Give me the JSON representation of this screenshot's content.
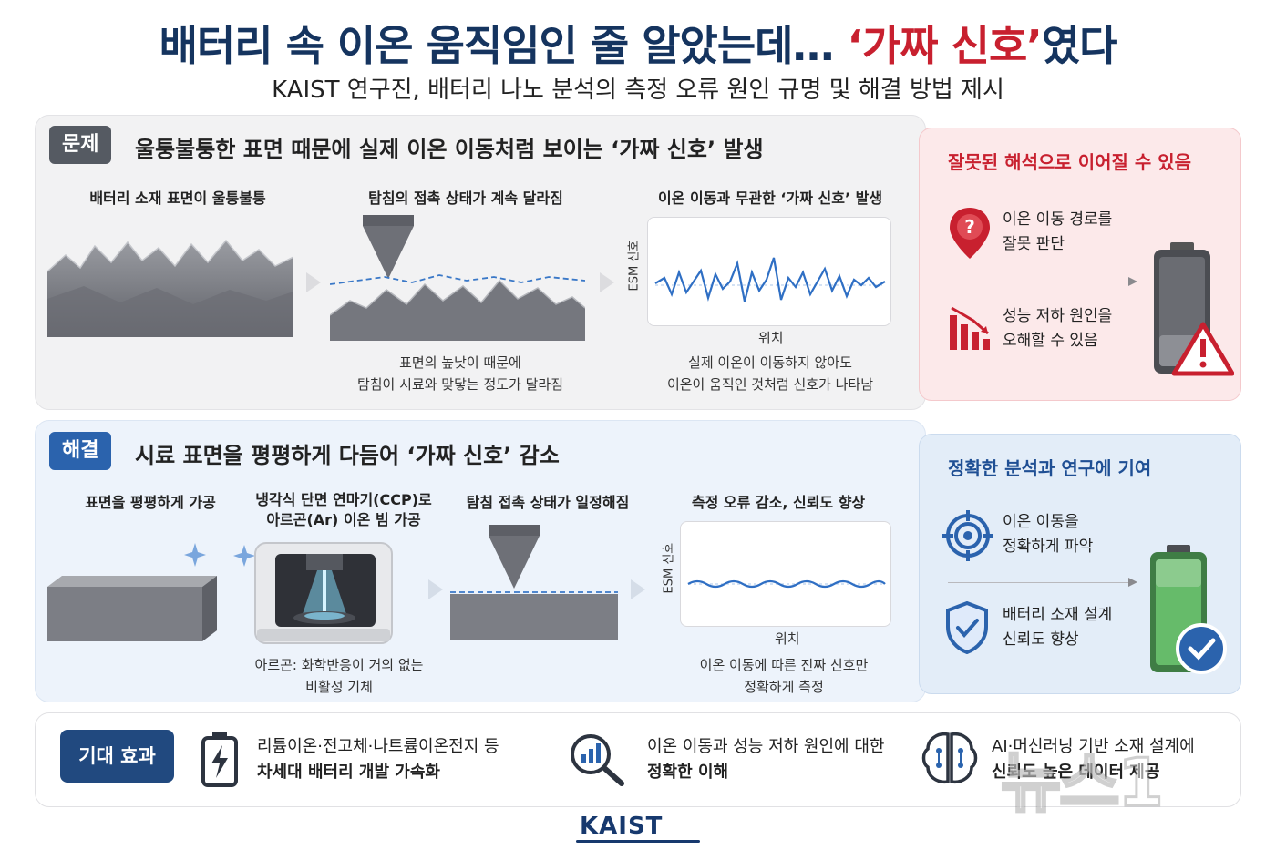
{
  "header": {
    "title_main": "배터리 속 이온 움직임인 줄 알았는데…",
    "title_accent": "‘가짜 신호’",
    "title_end": "였다",
    "subtitle": "KAIST 연구진, 배터리 나노 분석의 측정 오류 원인 규명 및 해결 방법 제시"
  },
  "problem": {
    "tag": "문제",
    "headline": "울퉁불퉁한 표면 때문에 실제 이온 이동처럼 보이는 ‘가짜 신호’ 발생",
    "step1_label": "배터리 소재 표면이 울퉁불퉁",
    "step2_label": "탐침의 접촉 상태가 계속 달라짐",
    "step2_caption_1": "표면의 높낮이 때문에",
    "step2_caption_2": "탐침이 시료와 맞닿는 정도가 달라짐",
    "step3_label": "이온 이동과 무관한 ‘가짜 신호’ 발생",
    "axis_y": "ESM 신호",
    "axis_x": "위치",
    "step3_caption_1": "실제 이온이 이동하지 않아도",
    "step3_caption_2": "이온이 움직인 것처럼 신호가 나타남",
    "side": {
      "title": "잘못된 해석으로 이어질 수 있음",
      "item1_line1": "이온 이동 경로를",
      "item1_line2": "잘못 판단",
      "item2_line1": "성능 저하 원인을",
      "item2_line2": "오해할 수 있음"
    }
  },
  "solution": {
    "tag": "해결",
    "headline": "시료 표면을 평평하게 다듬어 ‘가짜 신호’ 감소",
    "step1_label": "표면을 평평하게 가공",
    "step2_label_1": "냉각식 단면 연마기(CCP)로",
    "step2_label_2": "아르곤(Ar) 이온 빔 가공",
    "step2_caption_1": "아르곤: 화학반응이 거의 없는",
    "step2_caption_2": "비활성 기체",
    "step3_label": "탐침 접촉 상태가 일정해짐",
    "step4_label": "측정 오류 감소, 신뢰도 향상",
    "axis_y": "ESM 신호",
    "axis_x": "위치",
    "step4_caption_1": "이온 이동에 따른 진짜 신호만",
    "step4_caption_2": "정확하게 측정",
    "side": {
      "title": "정확한 분석과 연구에 기여",
      "item1_line1": "이온 이동을",
      "item1_line2": "정확하게 파악",
      "item2_line1": "배터리 소재 설계",
      "item2_line2": "신뢰도 향상"
    }
  },
  "effects": {
    "tag": "기대 효과",
    "e1_line1": "리튬이온·전고체·나트륨이온전지 등",
    "e1_line2": "차세대 배터리 개발 가속화",
    "e2_line1": "이온 이동과 성능 저하 원인에 대한",
    "e2_line2": "정확한 이해",
    "e3_line1": "AI·머신러닝 기반 소재 설계에",
    "e3_line2": "신뢰도 높은 데이터 제공"
  },
  "footer": {
    "logo": "KAIST",
    "watermark": "뉴스1"
  },
  "colors": {
    "navy": "#15345f",
    "red": "#c8202f",
    "blue": "#2b63ad",
    "green": "#4caf50"
  }
}
